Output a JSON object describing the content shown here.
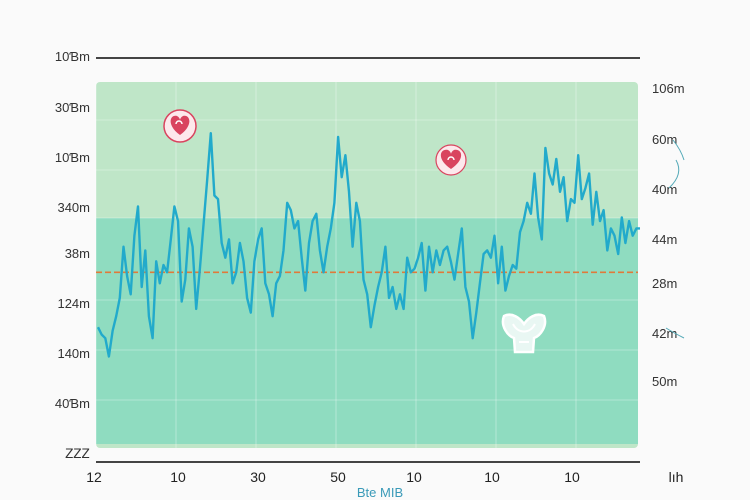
{
  "chart_data": {
    "type": "line",
    "title": "",
    "xlabel": "Bte MIB",
    "ylabel": "",
    "y_left_ticks": [
      "10Ɓm",
      "30Ɓm",
      "10Ɓm",
      "340m",
      "38m",
      "124m",
      "140m",
      "40Ɓm",
      "ᏃᏃᏃ"
    ],
    "y_right_ticks": [
      "106m",
      "60m",
      "40m",
      "44m",
      "28m",
      "42m",
      "50m"
    ],
    "x_ticks": [
      "12",
      "10",
      "30",
      "50",
      "10",
      "10",
      "10",
      "lıh"
    ],
    "ylim": [
      0,
      100
    ],
    "reference_line": 48,
    "grid": true,
    "colors": {
      "line": "#22aacb",
      "reference": "#e07a3a",
      "band_upper": "#bfe6c8",
      "band_lower": "#8fdcc0",
      "heart": "#d9445f"
    },
    "icons": [
      "heart-icon",
      "heart-icon",
      "heart-outline-icon"
    ],
    "series": [
      {
        "values": [
          33,
          31,
          30,
          25,
          32,
          36,
          41,
          55,
          47,
          42,
          58,
          66,
          44,
          54,
          36,
          30,
          51,
          45,
          50,
          48,
          57,
          66,
          62,
          40,
          46,
          60,
          55,
          38,
          49,
          61,
          73,
          86,
          69,
          68,
          56,
          52,
          57,
          45,
          48,
          56,
          51,
          41,
          37,
          51,
          57,
          60,
          45,
          42,
          36,
          45,
          47,
          54,
          67,
          65,
          60,
          62,
          52,
          43,
          56,
          62,
          64,
          54,
          48,
          55,
          60,
          67,
          85,
          74,
          80,
          70,
          55,
          67,
          62,
          46,
          42,
          33,
          39,
          44,
          48,
          55,
          41,
          44,
          38,
          42,
          38,
          52,
          48,
          49,
          52,
          56,
          43,
          55,
          48,
          54,
          50,
          54,
          55,
          51,
          46,
          53,
          60,
          44,
          40,
          30,
          37,
          45,
          53,
          54,
          52,
          58,
          45,
          55,
          43,
          47,
          50,
          49,
          59,
          62,
          67,
          64,
          75,
          63,
          57,
          82,
          75,
          72,
          79,
          70,
          74,
          62,
          68,
          67,
          80,
          68,
          71,
          75,
          61,
          70,
          62,
          65,
          54,
          60,
          58,
          53,
          63,
          56,
          62,
          58,
          60,
          60
        ]
      }
    ]
  }
}
